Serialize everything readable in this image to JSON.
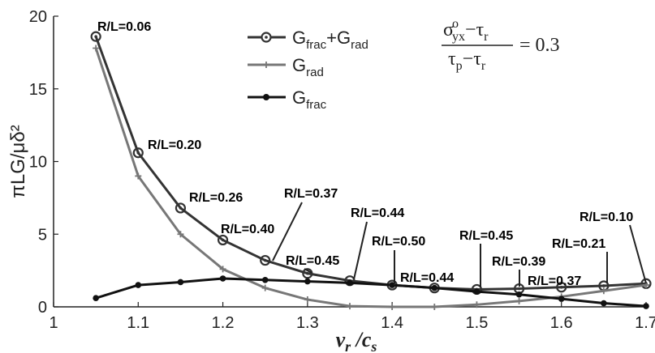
{
  "chart_data": {
    "type": "line",
    "xlabel": "v_r / c_s",
    "ylabel": "πLG/μδ²",
    "xlim": [
      1,
      1.7
    ],
    "ylim": [
      0,
      20
    ],
    "xticks": [
      "1",
      "1.1",
      "1.2",
      "1.3",
      "1.4",
      "1.5",
      "1.6",
      "1.7"
    ],
    "yticks": [
      "0",
      "5",
      "10",
      "15",
      "20"
    ],
    "legend_position": "top-center",
    "series": [
      {
        "name": "G_frac+G_rad",
        "label": {
          "main": "G",
          "sub1": "frac",
          "plus": "+G",
          "sub2": "rad"
        },
        "marker": "open-circle",
        "color": "#333333",
        "x": [
          1.05,
          1.1,
          1.15,
          1.2,
          1.25,
          1.3,
          1.35,
          1.4,
          1.45,
          1.5,
          1.55,
          1.6,
          1.65,
          1.7
        ],
        "y": [
          18.6,
          10.6,
          6.8,
          4.6,
          3.2,
          2.3,
          1.8,
          1.5,
          1.3,
          1.2,
          1.25,
          1.35,
          1.45,
          1.6
        ]
      },
      {
        "name": "G_rad",
        "label": {
          "main": "G",
          "sub1": "rad"
        },
        "marker": "plus",
        "color": "#777777",
        "x": [
          1.05,
          1.1,
          1.15,
          1.2,
          1.25,
          1.3,
          1.35,
          1.4,
          1.45,
          1.5,
          1.55,
          1.6,
          1.65,
          1.7
        ],
        "y": [
          17.8,
          9.0,
          5.0,
          2.6,
          1.3,
          0.5,
          0.05,
          0.0,
          0.0,
          0.15,
          0.4,
          0.7,
          1.1,
          1.5
        ]
      },
      {
        "name": "G_frac",
        "label": {
          "main": "G",
          "sub1": "frac"
        },
        "marker": "dot",
        "color": "#111111",
        "x": [
          1.05,
          1.1,
          1.15,
          1.2,
          1.25,
          1.3,
          1.35,
          1.4,
          1.45,
          1.5,
          1.55,
          1.6,
          1.65,
          1.7
        ],
        "y": [
          0.6,
          1.5,
          1.7,
          1.95,
          1.85,
          1.75,
          1.65,
          1.5,
          1.3,
          1.05,
          0.85,
          0.55,
          0.25,
          0.05
        ]
      }
    ],
    "annotations": [
      {
        "text": "R/L=0.06",
        "x": 1.05,
        "y": 18.6
      },
      {
        "text": "R/L=0.20",
        "x": 1.1,
        "y": 10.6
      },
      {
        "text": "R/L=0.26",
        "x": 1.15,
        "y": 6.8
      },
      {
        "text": "R/L=0.40",
        "x": 1.2,
        "y": 4.6
      },
      {
        "text": "R/L=0.37",
        "x": 1.25,
        "y": 3.2
      },
      {
        "text": "R/L=0.45",
        "x": 1.3,
        "y": 2.3
      },
      {
        "text": "R/L=0.44",
        "x": 1.35,
        "y": 1.8
      },
      {
        "text": "R/L=0.50",
        "x": 1.4,
        "y": 1.5
      },
      {
        "text": "R/L=0.44",
        "x": 1.45,
        "y": 1.3
      },
      {
        "text": "R/L=0.45",
        "x": 1.5,
        "y": 1.2
      },
      {
        "text": "R/L=0.39",
        "x": 1.55,
        "y": 1.25
      },
      {
        "text": "R/L=0.37",
        "x": 1.6,
        "y": 1.35
      },
      {
        "text": "R/L=0.21",
        "x": 1.65,
        "y": 1.45
      },
      {
        "text": "R/L=0.10",
        "x": 1.7,
        "y": 1.6
      }
    ],
    "equation": {
      "num_sigma": "σ",
      "num_sup": "o",
      "num_sub": "yx",
      "num_minus": "−τ",
      "num_sub2": "r",
      "den_tau": "τ",
      "den_sub": "p",
      "den_minus": "−τ",
      "den_sub2": "r",
      "rhs": "= 0.3"
    }
  }
}
